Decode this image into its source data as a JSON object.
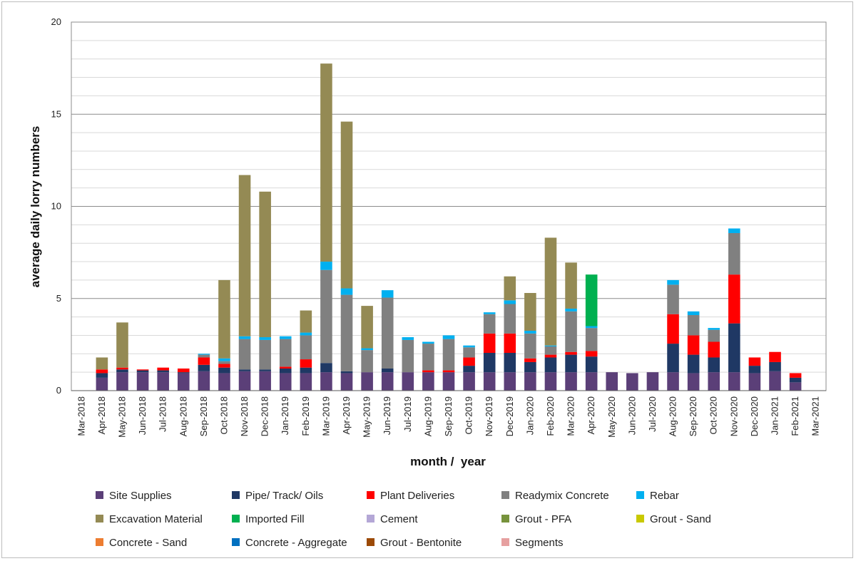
{
  "chart_data": {
    "type": "bar",
    "stacked": true,
    "title": "",
    "xlabel": "month /  year",
    "ylabel": "average daily lorry numbers",
    "ylim": [
      0,
      20
    ],
    "yticks": [
      0,
      5,
      10,
      15,
      20
    ],
    "grid": true,
    "legend_position": "bottom",
    "categories": [
      "Mar-2018",
      "Apr-2018",
      "May-2018",
      "Jun-2018",
      "Jul-2018",
      "Aug-2018",
      "Sep-2018",
      "Oct-2018",
      "Nov-2018",
      "Dec-2018",
      "Jan-2019",
      "Feb-2019",
      "Mar-2019",
      "Apr-2019",
      "May-2019",
      "Jun-2019",
      "Jul-2019",
      "Aug-2019",
      "Sep-2019",
      "Oct-2019",
      "Nov-2019",
      "Dec-2019",
      "Jan-2020",
      "Feb-2020",
      "Mar-2020",
      "Apr-2020",
      "May-2020",
      "Jun-2020",
      "Jul-2020",
      "Aug-2020",
      "Sep-2020",
      "Oct-2020",
      "Nov-2020",
      "Dec-2020",
      "Jan-2021",
      "Feb-2021",
      "Mar-2021"
    ],
    "series": [
      {
        "name": "Site Supplies",
        "color": "#5b3f78",
        "values": [
          0,
          0.7,
          1.0,
          1.0,
          1.0,
          0.95,
          1.05,
          0.95,
          1.05,
          1.05,
          0.95,
          0.95,
          1.0,
          0.95,
          1.0,
          1.0,
          1.0,
          1.0,
          1.0,
          1.0,
          1.0,
          1.0,
          1.0,
          1.0,
          1.0,
          1.0,
          1.0,
          0.95,
          1.0,
          1.0,
          0.95,
          1.0,
          1.0,
          0.95,
          1.05,
          0.45,
          0
        ]
      },
      {
        "name": "Pipe/ Track/ Oils",
        "color": "#1f3864",
        "values": [
          0,
          0.25,
          0.15,
          0.1,
          0.1,
          0.05,
          0.35,
          0.3,
          0.1,
          0.1,
          0.25,
          0.3,
          0.5,
          0.1,
          0,
          0.2,
          0,
          0,
          0,
          0.35,
          1.05,
          1.05,
          0.55,
          0.8,
          0.95,
          0.85,
          0,
          0,
          0,
          1.55,
          1.0,
          0.8,
          2.65,
          0.4,
          0.5,
          0.25,
          0
        ]
      },
      {
        "name": "Plant Deliveries",
        "color": "#ff0000",
        "values": [
          0,
          0.2,
          0.1,
          0.05,
          0.15,
          0.2,
          0.4,
          0.2,
          0,
          0,
          0.1,
          0.45,
          0,
          0,
          0,
          0,
          0,
          0.1,
          0.1,
          0.45,
          1.05,
          1.05,
          0.2,
          0.15,
          0.15,
          0.3,
          0,
          0,
          0,
          1.6,
          1.05,
          0.85,
          2.65,
          0.45,
          0.55,
          0.25,
          0
        ]
      },
      {
        "name": "Readymix Concrete",
        "color": "#808080",
        "values": [
          0,
          0,
          0,
          0,
          0,
          0,
          0.15,
          0.15,
          1.65,
          1.6,
          1.5,
          1.3,
          5.05,
          4.15,
          1.2,
          3.85,
          1.75,
          1.45,
          1.7,
          0.55,
          1.05,
          1.6,
          1.35,
          0.45,
          2.2,
          1.25,
          0,
          0,
          0,
          1.6,
          1.1,
          0.65,
          2.25,
          0,
          0,
          0,
          0
        ]
      },
      {
        "name": "Rebar",
        "color": "#00b0f0",
        "values": [
          0,
          0,
          0,
          0,
          0,
          0,
          0.05,
          0.15,
          0.15,
          0.15,
          0.15,
          0.15,
          0.45,
          0.35,
          0.1,
          0.4,
          0.15,
          0.1,
          0.2,
          0.1,
          0.1,
          0.2,
          0.15,
          0.05,
          0.15,
          0.1,
          0,
          0,
          0,
          0.25,
          0.2,
          0.1,
          0.25,
          0,
          0,
          0,
          0
        ]
      },
      {
        "name": "Excavation Material",
        "color": "#948a54",
        "values": [
          0,
          0.65,
          2.45,
          0,
          0,
          0,
          0,
          4.25,
          8.75,
          7.9,
          0,
          1.2,
          10.75,
          9.05,
          2.3,
          0,
          0,
          0,
          0,
          0,
          0,
          1.3,
          2.05,
          5.85,
          2.5,
          0,
          0,
          0,
          0,
          0,
          0,
          0,
          0,
          0,
          0,
          0,
          0
        ]
      },
      {
        "name": "Imported Fill",
        "color": "#00b050",
        "values": [
          0,
          0,
          0,
          0,
          0,
          0,
          0,
          0,
          0,
          0,
          0,
          0,
          0,
          0,
          0,
          0,
          0,
          0,
          0,
          0,
          0,
          0,
          0,
          0,
          0,
          2.8,
          0,
          0,
          0,
          0,
          0,
          0,
          0,
          0,
          0,
          0,
          0
        ]
      },
      {
        "name": "Cement",
        "color": "#b4a7d6",
        "values": [
          0,
          0,
          0,
          0,
          0,
          0,
          0,
          0,
          0,
          0,
          0,
          0,
          0,
          0,
          0,
          0,
          0,
          0,
          0,
          0,
          0,
          0,
          0,
          0,
          0,
          0,
          0,
          0,
          0,
          0,
          0,
          0,
          0,
          0,
          0,
          0,
          0
        ]
      },
      {
        "name": "Grout - PFA",
        "color": "#77933c",
        "values": [
          0,
          0,
          0,
          0,
          0,
          0,
          0,
          0,
          0,
          0,
          0,
          0,
          0,
          0,
          0,
          0,
          0,
          0,
          0,
          0,
          0,
          0,
          0,
          0,
          0,
          0,
          0,
          0,
          0,
          0,
          0,
          0,
          0,
          0,
          0,
          0,
          0
        ]
      },
      {
        "name": "Grout - Sand",
        "color": "#c9c900",
        "values": [
          0,
          0,
          0,
          0,
          0,
          0,
          0,
          0,
          0,
          0,
          0,
          0,
          0,
          0,
          0,
          0,
          0,
          0,
          0,
          0,
          0,
          0,
          0,
          0,
          0,
          0,
          0,
          0,
          0,
          0,
          0,
          0,
          0,
          0,
          0,
          0,
          0
        ]
      },
      {
        "name": "Concrete - Sand",
        "color": "#ed7d31",
        "values": [
          0,
          0,
          0,
          0,
          0,
          0,
          0,
          0,
          0,
          0,
          0,
          0,
          0,
          0,
          0,
          0,
          0,
          0,
          0,
          0,
          0,
          0,
          0,
          0,
          0,
          0,
          0,
          0,
          0,
          0,
          0,
          0,
          0,
          0,
          0,
          0,
          0
        ]
      },
      {
        "name": "Concrete - Aggregate",
        "color": "#0070c0",
        "values": [
          0,
          0,
          0,
          0,
          0,
          0,
          0,
          0,
          0,
          0,
          0,
          0,
          0,
          0,
          0,
          0,
          0,
          0,
          0,
          0,
          0,
          0,
          0,
          0,
          0,
          0,
          0,
          0,
          0,
          0,
          0,
          0,
          0,
          0,
          0,
          0,
          0
        ]
      },
      {
        "name": "Grout - Bentonite",
        "color": "#9c4a06",
        "values": [
          0,
          0,
          0,
          0,
          0,
          0,
          0,
          0,
          0,
          0,
          0,
          0,
          0,
          0,
          0,
          0,
          0,
          0,
          0,
          0,
          0,
          0,
          0,
          0,
          0,
          0,
          0,
          0,
          0,
          0,
          0,
          0,
          0,
          0,
          0,
          0,
          0
        ]
      },
      {
        "name": "Segments",
        "color": "#e6a0a0",
        "values": [
          0,
          0,
          0,
          0,
          0,
          0,
          0,
          0,
          0,
          0,
          0,
          0,
          0,
          0,
          0,
          0,
          0,
          0,
          0,
          0,
          0,
          0,
          0,
          0,
          0,
          0,
          0,
          0,
          0,
          0,
          0,
          0,
          0,
          0,
          0,
          0,
          0
        ]
      }
    ]
  }
}
